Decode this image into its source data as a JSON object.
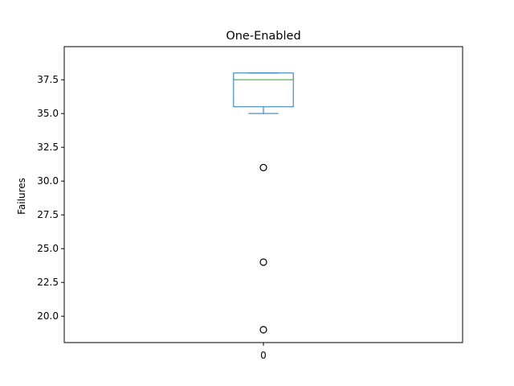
{
  "chart_data": {
    "type": "box",
    "title": "One-Enabled",
    "xlabel": "",
    "ylabel": "Failures",
    "categories": [
      "0"
    ],
    "ylim": [
      18.05,
      39.95
    ],
    "yticks": [
      20.0,
      22.5,
      25.0,
      27.5,
      30.0,
      32.5,
      35.0,
      37.5
    ],
    "ytick_labels": [
      "20.0",
      "22.5",
      "25.0",
      "27.5",
      "30.0",
      "32.5",
      "35.0",
      "37.5"
    ],
    "grid": false,
    "boxes": [
      {
        "category": "0",
        "whisker_low": 35.0,
        "q1": 35.5,
        "median": 37.5,
        "q3": 38.0,
        "whisker_high": 38.0,
        "outliers": [
          31.0,
          24.0,
          19.0
        ]
      }
    ],
    "colors": {
      "box": "#1f77b4",
      "median": "#2ca02c",
      "outlier_edge": "#000000",
      "axes": "#000000"
    }
  }
}
